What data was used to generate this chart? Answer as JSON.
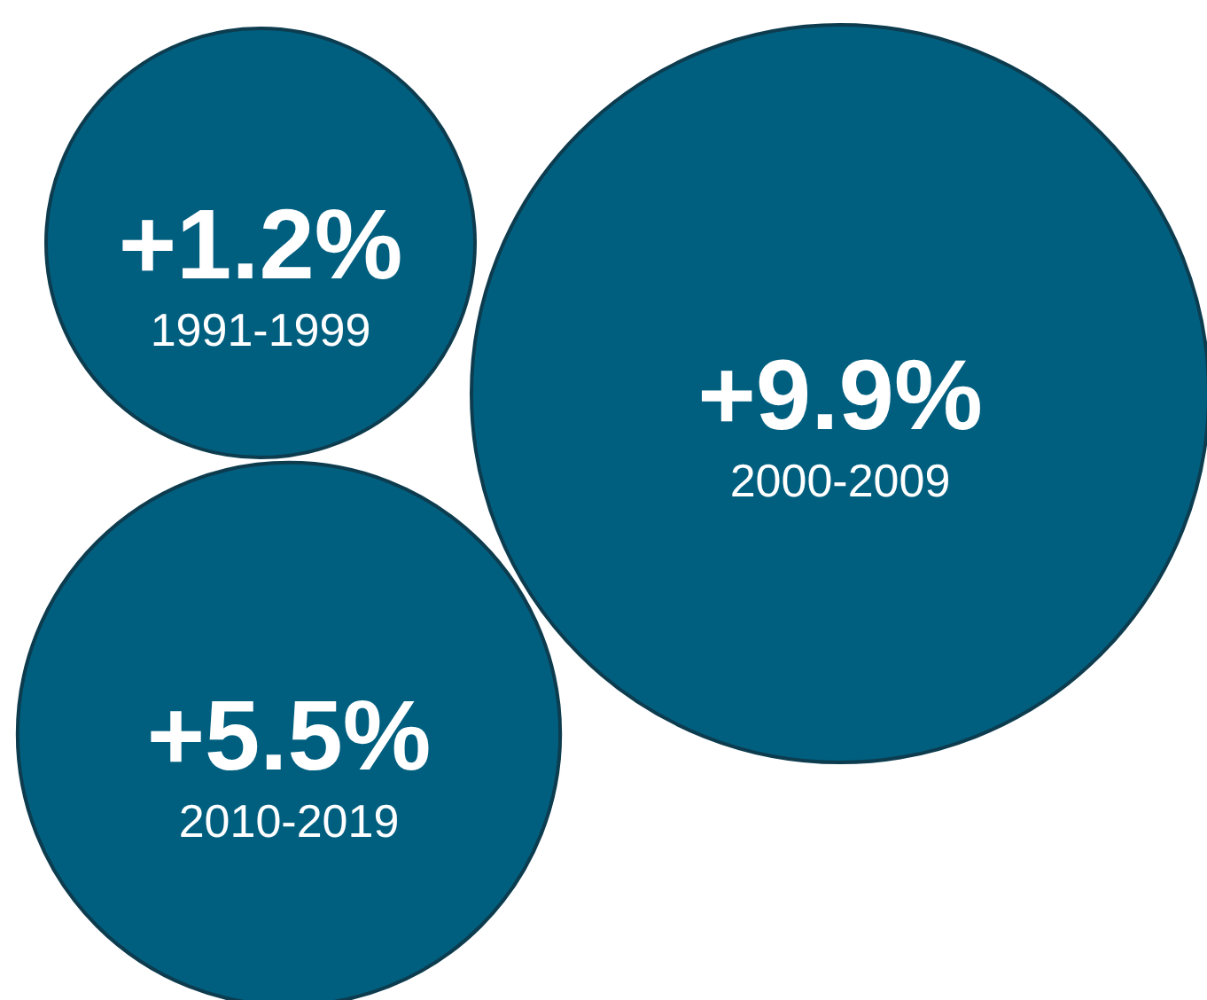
{
  "chart_data": {
    "type": "other",
    "categories": [
      "1991-1999",
      "2000-2009",
      "2010-2019"
    ],
    "values": [
      1.2,
      9.9,
      5.5
    ],
    "value_labels": [
      "+1.2%",
      "+9.9%",
      "+5.5%"
    ],
    "color": "#005f7f"
  }
}
